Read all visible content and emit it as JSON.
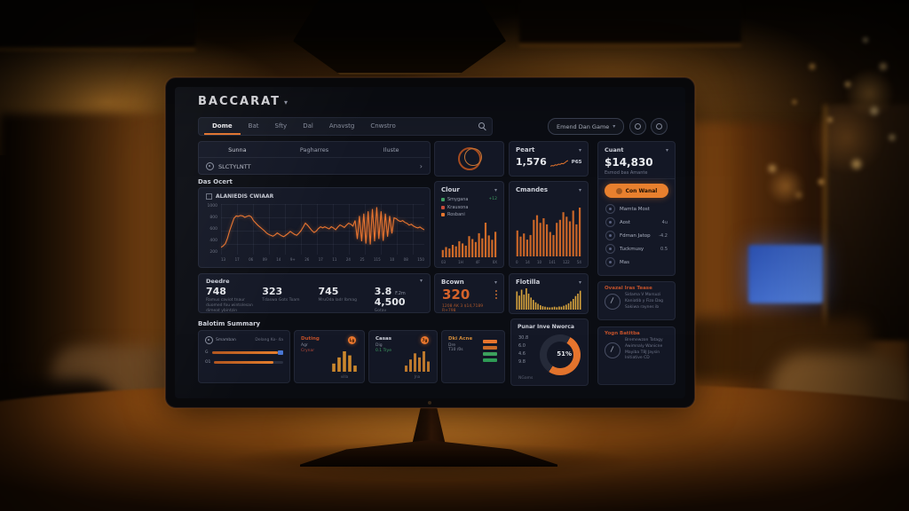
{
  "colors": {
    "accent_orange": "#e8762e",
    "accent_green": "#3f9e63",
    "accent_red": "#c84b3a",
    "accent_blue": "#4a79d8",
    "value_orange": "#d4622a"
  },
  "header": {
    "title": "BACCARAT",
    "caret": "▾",
    "tabs": [
      {
        "label": "Dome"
      },
      {
        "label": "Bat"
      },
      {
        "label": "Sfty"
      },
      {
        "label": "Dal"
      },
      {
        "label": "Anavstg"
      },
      {
        "label": "Cnwstro"
      }
    ],
    "actions_pill": "Emend Dan Game",
    "actions_caret": "▾"
  },
  "filters": {
    "tab1": "Sunna",
    "tab2": "Pagharres",
    "tab3": "Iluste",
    "search_label": "SLCTYLNTT",
    "chevron": "›"
  },
  "line_section": {
    "label": "Das Ocert",
    "legend_label": "ALANIEDIS CWIAAR",
    "ymax": 1000,
    "y_ticks": [
      "1000",
      "800",
      "600",
      "400",
      "200"
    ],
    "x_ticks": [
      "13",
      "17",
      "06",
      "09",
      "14",
      "9+",
      "26",
      "17",
      "11",
      "24",
      "25",
      "115",
      "10",
      "08",
      "150"
    ],
    "values": [
      120,
      150,
      200,
      320,
      480,
      620,
      750,
      800,
      790,
      810,
      800,
      770,
      790,
      805,
      780,
      700,
      650,
      600,
      560,
      520,
      480,
      430,
      400,
      380,
      360,
      390,
      430,
      400,
      370,
      350,
      385,
      420,
      465,
      430,
      400,
      380,
      425,
      480,
      560,
      645,
      600,
      540,
      485,
      440,
      470,
      525,
      565,
      540,
      565,
      540,
      520,
      565,
      540,
      500,
      560,
      605,
      580,
      550,
      600,
      645,
      620,
      580,
      700,
      300,
      800,
      250,
      850,
      200,
      900,
      180,
      950,
      250,
      990,
      300,
      900,
      260,
      850,
      350,
      800,
      420,
      760,
      740,
      700,
      680,
      700,
      660,
      640,
      600,
      620,
      580,
      555,
      540,
      560,
      525,
      500
    ]
  },
  "stats_bar": {
    "header": "Deedre",
    "caret": "▾",
    "stat1": {
      "value": "748",
      "caption": "Ramus caviot tnaur duomed fou wintolesan dimeat ybintzin"
    },
    "stat2": {
      "value": "323",
      "caption": "Tdaswa Gots Toam"
    },
    "stat3": {
      "value": "745",
      "caption": "MruOda ladr Ibmag"
    },
    "stat4": {
      "value": "3.8",
      "unit": "F.2m",
      "value2": "4,500",
      "caption": "Gotav"
    }
  },
  "clour_card": {
    "title": "Clour",
    "caret": "▾",
    "legend": [
      {
        "label": "Smygana",
        "color": "#3f9e63",
        "value": "+12"
      },
      {
        "label": "Krausona",
        "color": "#c84b3a",
        "value": ""
      },
      {
        "label": "Rosbani",
        "color": "#e8762e",
        "value": ""
      }
    ],
    "bars": [
      20,
      28,
      24,
      34,
      30,
      44,
      38,
      32,
      58,
      50,
      42,
      66,
      52,
      95,
      60,
      48,
      70
    ],
    "x_ticks": [
      "03",
      "1H",
      "4F",
      "0X"
    ]
  },
  "bcown_card": {
    "title": "Bcown",
    "caret": "▾",
    "value": "320",
    "caption": "1208 AK 3 $14,7189 R+798"
  },
  "peart_card": {
    "title": "Peart",
    "caret": "▾",
    "value": "1,576",
    "badge": "P65",
    "spark": [
      2,
      3,
      2.5,
      4,
      3.5,
      5,
      4.5,
      6,
      5.5,
      7,
      9,
      10
    ]
  },
  "cmandes_card": {
    "title": "Cmandes",
    "caret": "▾",
    "bars": [
      34,
      26,
      30,
      22,
      28,
      48,
      54,
      44,
      50,
      42,
      32,
      28,
      44,
      48,
      58,
      52,
      46,
      60,
      42,
      64
    ],
    "x_ticks": [
      "0",
      "14",
      "10",
      "141",
      "122",
      "54"
    ]
  },
  "flotilla_card": {
    "title": "Flotilla",
    "caret": "▾",
    "bars": [
      75,
      58,
      82,
      62,
      88,
      66,
      50,
      40,
      30,
      24,
      18,
      14,
      12,
      10,
      9,
      10,
      12,
      10,
      13,
      12,
      16,
      20,
      26,
      34,
      44,
      56,
      66,
      78
    ]
  },
  "punar_card": {
    "title": "Punar Inve Nworca",
    "percent": 51,
    "center_label": "51%",
    "stats": [
      "30.8",
      "6.0",
      "4.6",
      "9.8"
    ],
    "footer": "NGams"
  },
  "cuant_card": {
    "title": "Cuant",
    "caret": "▾",
    "value": "$14,830",
    "subtitle": "Esmod bas Amante",
    "button_label": "Con Wanal",
    "menu": [
      {
        "label": "Mamta Most",
        "value": ""
      },
      {
        "label": "Aost",
        "value": "4u"
      },
      {
        "label": "Fdman Jatop",
        "value": "-4.2"
      },
      {
        "label": "Tuckmusy",
        "value": "0.5"
      },
      {
        "label": "Mas",
        "value": ""
      }
    ]
  },
  "ovazal_card": {
    "title": "Ovazal Iras Tease",
    "lines": [
      "Sidama V Marsuzi",
      "Kaniatib y Fizo Dag",
      "Sakiwa raynes ib"
    ]
  },
  "yogn_card": {
    "title": "Yogn Batitba",
    "lines": [
      "Bremewzon Tatagy",
      "Awimnaly Wanicne",
      "Mayiba T8J Jaysin",
      "Initiative CD"
    ]
  },
  "summary": {
    "title": "Balotim Summary",
    "card1": {
      "header": "Smamban",
      "header_right": "Delang Ko- 4a",
      "bar1_label": "G",
      "bar1_percent": 93,
      "bar2_label": "O1",
      "bar2_percent": 86
    },
    "card2": {
      "title": "Duting",
      "line1": "Agr",
      "line2": "Crynar",
      "badge": "Lg",
      "bars": [
        4,
        7,
        10,
        8,
        3
      ],
      "caption": "villa"
    },
    "card3": {
      "title": "Casas",
      "line1": "Dig",
      "line2": "0.1 Trye",
      "badge": "7g",
      "bars": [
        3,
        6,
        9,
        7,
        10,
        5
      ],
      "caption": "Jna"
    },
    "card4": {
      "title": "Dki Acne",
      "line1": "Dre",
      "line2": "T10 /0s",
      "bar_colors": [
        "#e8762e",
        "#c96a28",
        "#3da35f",
        "#2f9e57"
      ]
    }
  }
}
